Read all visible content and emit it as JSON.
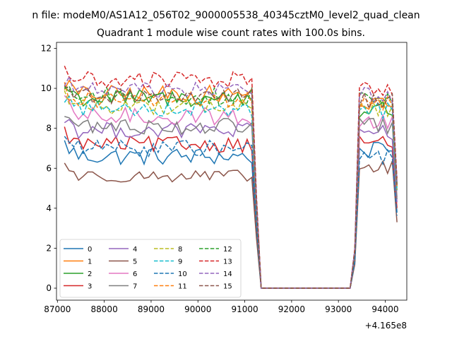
{
  "page": {
    "suptitle": "n file: modeM0/AS1A12_056T02_9000005538_40345cztM0_level2_quad_clean"
  },
  "chart_data": {
    "type": "line",
    "title": "Quadrant 1 module wise count rates with 100.0s bins.",
    "xlabel": "",
    "ylabel": "",
    "x_offset_label": "+4.165e8",
    "xlim": [
      86980,
      94460
    ],
    "ylim": [
      -0.6,
      12.3
    ],
    "xticks": [
      87000,
      88000,
      89000,
      90000,
      91000,
      92000,
      93000,
      94000
    ],
    "xtick_labels": [
      "87000",
      "88000",
      "89000",
      "90000",
      "91000",
      "92000",
      "93000",
      "94000"
    ],
    "yticks": [
      0,
      2,
      4,
      6,
      8,
      10,
      12
    ],
    "ytick_labels": [
      "0",
      "2",
      "4",
      "6",
      "8",
      "10",
      "12"
    ],
    "grid": false,
    "legend_placement": "lower-left",
    "legend_columns": 4,
    "x_start": 87150,
    "x_step": 100,
    "dead_interval": [
      91350,
      93250
    ],
    "dead_value": 0,
    "series": [
      {
        "name": "0",
        "color": "#1f77b4",
        "dash": "solid",
        "pre_level": 6.6,
        "pre_amp": 0.45,
        "post_level": 6.9,
        "post_amp": 0.4
      },
      {
        "name": "1",
        "color": "#ff7f0e",
        "dash": "solid",
        "pre_level": 9.7,
        "pre_amp": 0.45,
        "post_level": 9.2,
        "post_amp": 0.4
      },
      {
        "name": "2",
        "color": "#2ca02c",
        "dash": "solid",
        "pre_level": 9.5,
        "pre_amp": 0.45,
        "post_level": 8.9,
        "post_amp": 0.5
      },
      {
        "name": "3",
        "color": "#d62728",
        "dash": "solid",
        "pre_level": 7.2,
        "pre_amp": 0.4,
        "post_level": 7.3,
        "post_amp": 0.35
      },
      {
        "name": "4",
        "color": "#9467bd",
        "dash": "solid",
        "pre_level": 7.9,
        "pre_amp": 0.4,
        "post_level": 7.8,
        "post_amp": 0.4
      },
      {
        "name": "5",
        "color": "#8c564b",
        "dash": "solid",
        "pre_level": 5.6,
        "pre_amp": 0.3,
        "post_level": 6.0,
        "post_amp": 0.4
      },
      {
        "name": "6",
        "color": "#e377c2",
        "dash": "solid",
        "pre_level": 8.6,
        "pre_amp": 0.45,
        "post_level": 8.3,
        "post_amp": 0.4
      },
      {
        "name": "7",
        "color": "#7f7f7f",
        "dash": "solid",
        "pre_level": 8.1,
        "pre_amp": 0.4,
        "post_level": 8.1,
        "post_amp": 0.4
      },
      {
        "name": "8",
        "color": "#bcbd22",
        "dash": "dashed",
        "pre_level": 9.1,
        "pre_amp": 0.4,
        "post_level": 9.0,
        "post_amp": 0.4
      },
      {
        "name": "9",
        "color": "#17becf",
        "dash": "dashed",
        "pre_level": 9.0,
        "pre_amp": 0.4,
        "post_level": 8.9,
        "post_amp": 0.4
      },
      {
        "name": "10",
        "color": "#1f77b4",
        "dash": "dashed",
        "pre_level": 7.0,
        "pre_amp": 0.4,
        "post_level": 6.6,
        "post_amp": 0.4
      },
      {
        "name": "11",
        "color": "#ff7f0e",
        "dash": "dashed",
        "pre_level": 9.4,
        "pre_amp": 0.4,
        "post_level": 9.3,
        "post_amp": 0.4
      },
      {
        "name": "12",
        "color": "#2ca02c",
        "dash": "dashed",
        "pre_level": 9.6,
        "pre_amp": 0.45,
        "post_level": 9.5,
        "post_amp": 0.4
      },
      {
        "name": "13",
        "color": "#d62728",
        "dash": "dashed",
        "pre_level": 10.4,
        "pre_amp": 0.45,
        "post_level": 10.0,
        "post_amp": 0.4
      },
      {
        "name": "14",
        "color": "#9467bd",
        "dash": "dashed",
        "pre_level": 9.9,
        "pre_amp": 0.4,
        "post_level": 9.7,
        "post_amp": 0.4
      },
      {
        "name": "15",
        "color": "#8c564b",
        "dash": "dashed",
        "pre_level": 9.6,
        "pre_amp": 0.4,
        "post_level": 9.4,
        "post_amp": 0.4
      }
    ]
  }
}
